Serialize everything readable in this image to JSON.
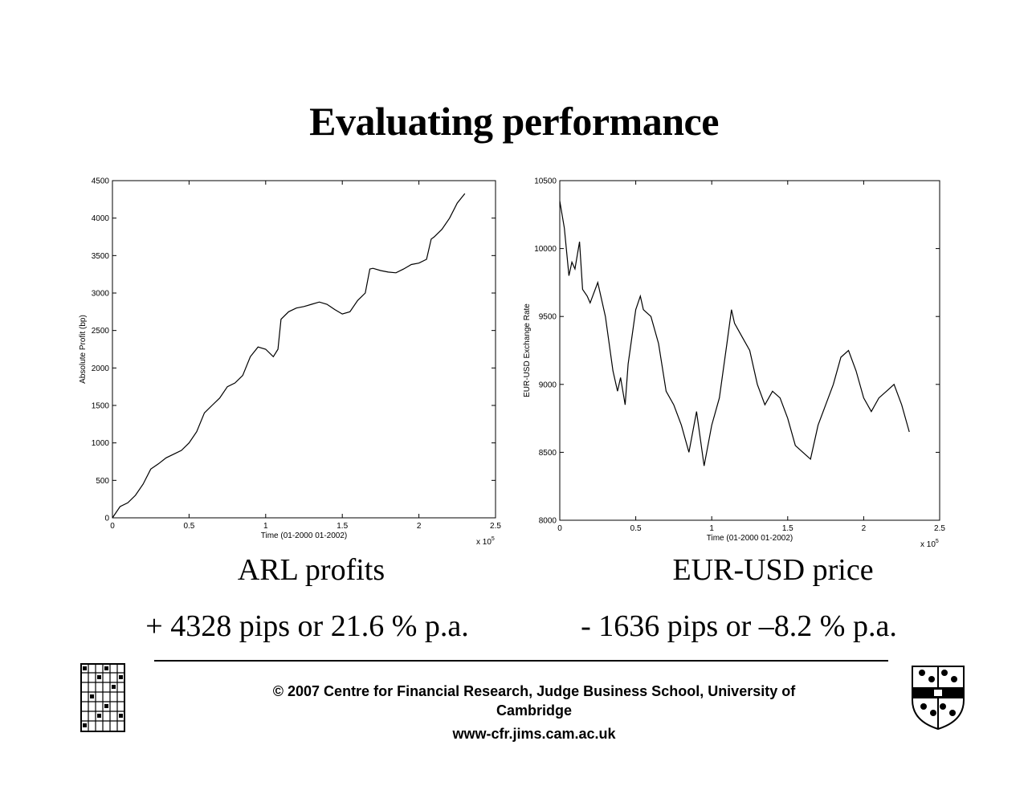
{
  "title": "Evaluating performance",
  "chart_data": [
    {
      "type": "line",
      "title": "",
      "xlabel": "Time (01-2000  01-2002)",
      "ylabel": "Absolute Profit (bp)",
      "x_multiplier": "x 10",
      "x_multiplier_exp": "5",
      "xlim": [
        0,
        2.5
      ],
      "ylim": [
        0,
        4500
      ],
      "xticks": [
        "0",
        "0.5",
        "1",
        "1.5",
        "2",
        "2.5"
      ],
      "yticks": [
        "0",
        "500",
        "1000",
        "1500",
        "2000",
        "2500",
        "3000",
        "3500",
        "4000",
        "4500"
      ],
      "grid": false,
      "series": [
        {
          "x": [
            0,
            0.05,
            0.1,
            0.15,
            0.2,
            0.25,
            0.3,
            0.35,
            0.4,
            0.45,
            0.5,
            0.55,
            0.6,
            0.65,
            0.7,
            0.75,
            0.8,
            0.85,
            0.9,
            0.95,
            1.0,
            1.05,
            1.08,
            1.1,
            1.15,
            1.2,
            1.25,
            1.3,
            1.35,
            1.4,
            1.45,
            1.5,
            1.55,
            1.6,
            1.65,
            1.68,
            1.7,
            1.75,
            1.8,
            1.85,
            1.9,
            1.95,
            2.0,
            2.05,
            2.08,
            2.1,
            2.15,
            2.2,
            2.25,
            2.3
          ],
          "y": [
            0,
            150,
            200,
            300,
            450,
            650,
            720,
            800,
            850,
            900,
            1000,
            1150,
            1400,
            1500,
            1600,
            1750,
            1800,
            1900,
            2150,
            2280,
            2250,
            2150,
            2250,
            2650,
            2750,
            2800,
            2820,
            2850,
            2880,
            2850,
            2780,
            2720,
            2750,
            2900,
            3000,
            3320,
            3330,
            3300,
            3280,
            3270,
            3320,
            3380,
            3400,
            3450,
            3720,
            3750,
            3850,
            4000,
            4200,
            4328
          ]
        }
      ]
    },
    {
      "type": "line",
      "title": "",
      "xlabel": "Time (01-2000  01-2002)",
      "ylabel": "EUR-USD Exchange Rate",
      "x_multiplier": "x 10",
      "x_multiplier_exp": "5",
      "xlim": [
        0,
        2.5
      ],
      "ylim": [
        8000,
        10500
      ],
      "xticks": [
        "0",
        "0.5",
        "1",
        "1.5",
        "2",
        "2.5"
      ],
      "yticks": [
        "8000",
        "8500",
        "9000",
        "9500",
        "10000",
        "10500"
      ],
      "grid": false,
      "series": [
        {
          "x": [
            0,
            0.03,
            0.06,
            0.08,
            0.1,
            0.13,
            0.15,
            0.18,
            0.2,
            0.25,
            0.3,
            0.35,
            0.38,
            0.4,
            0.43,
            0.45,
            0.5,
            0.53,
            0.55,
            0.6,
            0.65,
            0.7,
            0.75,
            0.8,
            0.85,
            0.9,
            0.95,
            1.0,
            1.05,
            1.1,
            1.13,
            1.15,
            1.2,
            1.25,
            1.3,
            1.35,
            1.4,
            1.45,
            1.5,
            1.55,
            1.6,
            1.65,
            1.7,
            1.75,
            1.8,
            1.85,
            1.9,
            1.95,
            2.0,
            2.05,
            2.1,
            2.15,
            2.2,
            2.25,
            2.3
          ],
          "y": [
            10350,
            10150,
            9800,
            9900,
            9850,
            10050,
            9700,
            9650,
            9600,
            9750,
            9500,
            9100,
            8950,
            9050,
            8850,
            9150,
            9550,
            9650,
            9550,
            9500,
            9300,
            8950,
            8850,
            8700,
            8500,
            8800,
            8400,
            8700,
            8900,
            9300,
            9550,
            9450,
            9350,
            9250,
            9000,
            8850,
            8950,
            8900,
            8750,
            8550,
            8500,
            8450,
            8700,
            8850,
            9000,
            9200,
            9250,
            9100,
            8900,
            8800,
            8900,
            8950,
            9000,
            8850,
            8650
          ]
        }
      ]
    }
  ],
  "captions": {
    "left_title": "ARL profits",
    "left_value": "+ 4328 pips or 21.6 % p.a.",
    "right_title": "EUR-USD price",
    "right_value": "- 1636 pips or –8.2 % p.a."
  },
  "footer": {
    "line1": "© 2007 Centre for Financial Research,  Judge Business School,  University of",
    "line2": "Cambridge",
    "url": "www-cfr.jims.cam.ac.uk"
  }
}
